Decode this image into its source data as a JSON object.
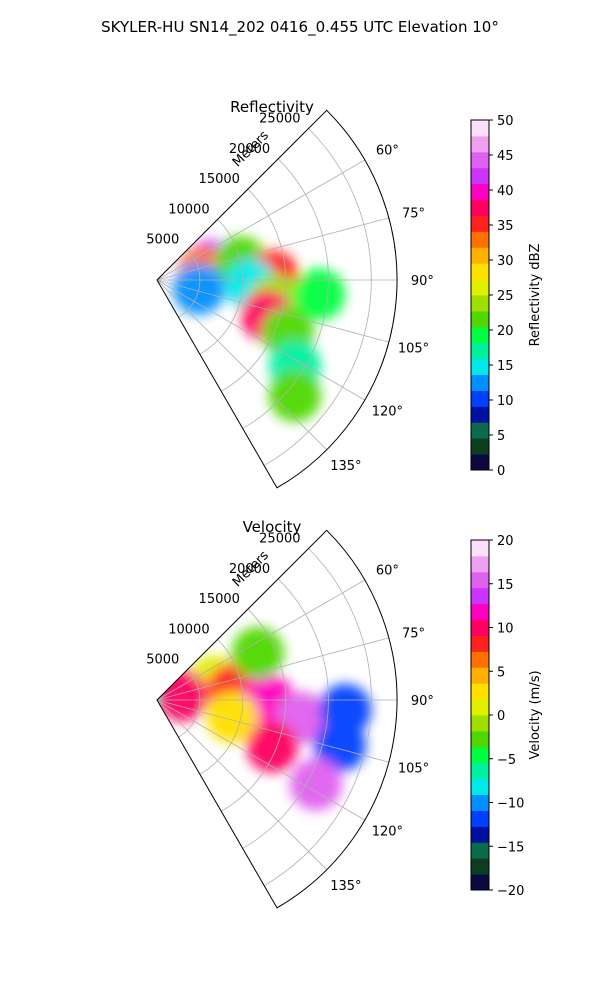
{
  "figure": {
    "suptitle": "SKYLER-HU  SN14_202  0416_0.455 UTC Elevation 10°"
  },
  "chart_data": [
    {
      "type": "heatmap",
      "projection": "polar-sector",
      "title": "Reflectivity",
      "radial_axis_label": "Meters",
      "radial_ticks": [
        5000,
        10000,
        15000,
        20000,
        25000
      ],
      "radial_tick_labels": [
        "5000",
        "10000",
        "15000",
        "20000",
        "25000"
      ],
      "rlim": [
        0,
        28000
      ],
      "azimuth_range_deg": [
        45,
        150
      ],
      "azimuth_ticks_deg": [
        60,
        75,
        90,
        105,
        120,
        135
      ],
      "azimuth_tick_labels": [
        "60°",
        "75°",
        "90°",
        "105°",
        "120°",
        "135°"
      ],
      "grid": true,
      "colorbar": {
        "label": "Reflectivity dBZ",
        "range": [
          0,
          50
        ],
        "ticks": [
          0,
          5,
          10,
          15,
          20,
          25,
          30,
          35,
          40,
          45,
          50
        ],
        "tick_labels": [
          "0",
          "5",
          "10",
          "15",
          "20",
          "25",
          "30",
          "35",
          "40",
          "45",
          "50"
        ],
        "colors": [
          "#0a0a40",
          "#0d3d20",
          "#0a6a4a",
          "#0010a0",
          "#0040ff",
          "#0090ff",
          "#00e8e8",
          "#00f0a0",
          "#00ff40",
          "#50d800",
          "#a0e000",
          "#e0f000",
          "#ffe000",
          "#ffb000",
          "#ff7000",
          "#ff2020",
          "#ff0060",
          "#ff00c0",
          "#cc33ff",
          "#e060f0",
          "#f0a0f0",
          "#fbe0fb"
        ]
      },
      "features": [
        {
          "az": 75,
          "range": 6500,
          "value": 42
        },
        {
          "az": 80,
          "range": 5500,
          "value": 34
        },
        {
          "az": 78,
          "range": 10000,
          "value": 22
        },
        {
          "az": 88,
          "range": 13500,
          "value": 36
        },
        {
          "az": 93,
          "range": 11000,
          "value": 14
        },
        {
          "az": 100,
          "range": 14000,
          "value": 24
        },
        {
          "az": 108,
          "range": 13500,
          "value": 38
        },
        {
          "az": 112,
          "range": 16500,
          "value": 22
        },
        {
          "az": 95,
          "range": 19000,
          "value": 20
        },
        {
          "az": 102,
          "range": 5000,
          "value": 12
        },
        {
          "az": 122,
          "range": 19000,
          "value": 18
        },
        {
          "az": 130,
          "range": 21000,
          "value": 22
        }
      ]
    },
    {
      "type": "heatmap",
      "projection": "polar-sector",
      "title": "Velocity",
      "radial_axis_label": "Meters",
      "radial_ticks": [
        5000,
        10000,
        15000,
        20000,
        25000
      ],
      "radial_tick_labels": [
        "5000",
        "10000",
        "15000",
        "20000",
        "25000"
      ],
      "rlim": [
        0,
        28000
      ],
      "azimuth_range_deg": [
        45,
        150
      ],
      "azimuth_ticks_deg": [
        60,
        75,
        90,
        105,
        120,
        135
      ],
      "azimuth_tick_labels": [
        "60°",
        "75°",
        "90°",
        "105°",
        "120°",
        "135°"
      ],
      "grid": true,
      "colorbar": {
        "label": "Velocity (m/s)",
        "range": [
          -20,
          20
        ],
        "ticks": [
          -20,
          -15,
          -10,
          -5,
          0,
          5,
          10,
          15,
          20
        ],
        "tick_labels": [
          "−20",
          "−15",
          "−10",
          "−5",
          "0",
          "5",
          "10",
          "15",
          "20"
        ],
        "colors": [
          "#0a0a40",
          "#0d3d20",
          "#0a6a4a",
          "#0010a0",
          "#0040ff",
          "#0090ff",
          "#00e8e8",
          "#00f0a0",
          "#00ff40",
          "#50d800",
          "#a0e000",
          "#e0f000",
          "#ffe000",
          "#ffb000",
          "#ff7000",
          "#ff2020",
          "#ff0060",
          "#ff00c0",
          "#cc33ff",
          "#e060f0",
          "#f0a0f0",
          "#fbe0fb"
        ]
      },
      "features": [
        {
          "az": 72,
          "range": 7000,
          "value": 0
        },
        {
          "az": 82,
          "range": 9000,
          "value": 9
        },
        {
          "az": 90,
          "range": 13000,
          "value": 11
        },
        {
          "az": 97,
          "range": 17000,
          "value": 16
        },
        {
          "az": 93,
          "range": 22000,
          "value": -12
        },
        {
          "az": 104,
          "range": 22000,
          "value": -12
        },
        {
          "az": 103,
          "range": 9000,
          "value": 3
        },
        {
          "az": 112,
          "range": 14500,
          "value": 10
        },
        {
          "az": 118,
          "range": 21000,
          "value": 16
        },
        {
          "az": 80,
          "range": 3000,
          "value": 10
        },
        {
          "az": 65,
          "range": 13000,
          "value": -3
        }
      ]
    }
  ]
}
